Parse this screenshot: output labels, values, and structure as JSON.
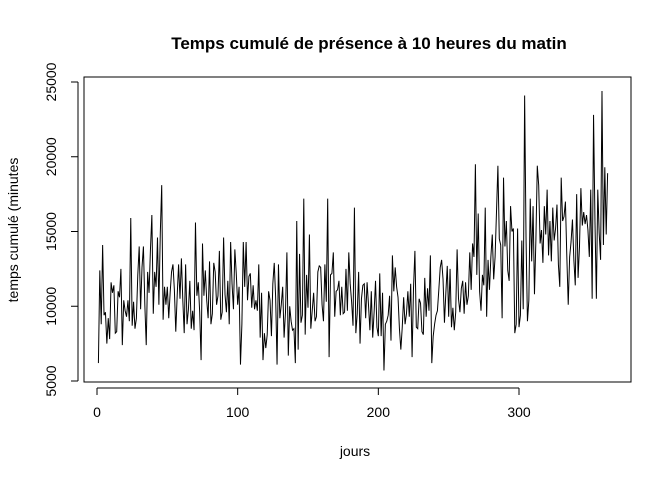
{
  "chart_data": {
    "type": "line",
    "title": "Temps cumulé de présence à 10 heures du matin",
    "xlabel": "jours",
    "ylabel": "temps cumulé (minutes",
    "xlim": [
      1,
      365
    ],
    "ylim": [
      5000,
      25000
    ],
    "x_ticks": [
      0,
      100,
      200,
      300
    ],
    "y_ticks": [
      5000,
      10000,
      15000,
      20000,
      25000
    ],
    "grid": false,
    "series": [
      {
        "x_start": 1,
        "x_step": 1,
        "values": [
          6200,
          12400,
          8800,
          14100,
          9400,
          9600,
          7500,
          9200,
          7800,
          11600,
          10900,
          11400,
          8200,
          8300,
          11000,
          10600,
          12500,
          7400,
          10400,
          9700,
          9300,
          10400,
          9000,
          15900,
          8700,
          10300,
          8500,
          9200,
          12100,
          14000,
          9800,
          12600,
          14000,
          10100,
          7400,
          12300,
          10900,
          13800,
          16100,
          9500,
          12300,
          11300,
          14600,
          10100,
          14900,
          18100,
          9100,
          11300,
          10100,
          11300,
          9200,
          10900,
          12300,
          12800,
          11100,
          8300,
          10700,
          12800,
          10500,
          13200,
          10400,
          8200,
          12800,
          8800,
          9800,
          11700,
          8500,
          9700,
          8400,
          15600,
          10700,
          11600,
          9600,
          6400,
          14200,
          10700,
          12400,
          10400,
          9200,
          13000,
          8800,
          9500,
          12900,
          12300,
          10100,
          10700,
          13700,
          9100,
          9600,
          14600,
          10800,
          9600,
          11700,
          8800,
          14300,
          11500,
          9800,
          13800,
          12200,
          10100,
          11300,
          6100,
          8800,
          14300,
          11300,
          14300,
          10400,
          12000,
          12200,
          9900,
          11400,
          9800,
          10400,
          9700,
          12800,
          7900,
          10900,
          6400,
          8200,
          7200,
          8100,
          11000,
          10400,
          8000,
          11500,
          12900,
          10600,
          6100,
          12800,
          9200,
          10100,
          11300,
          7900,
          9600,
          13600,
          6700,
          10000,
          9000,
          8400,
          8500,
          6200,
          15700,
          7100,
          13500,
          8900,
          9400,
          17200,
          8100,
          12100,
          9900,
          14800,
          8500,
          9700,
          10900,
          9000,
          9300,
          12300,
          12700,
          12600,
          10100,
          9000,
          12800,
          10300,
          17200,
          6600,
          12100,
          12200,
          13600,
          9300,
          11000,
          11100,
          11700,
          9400,
          11300,
          9500,
          9600,
          12500,
          9700,
          13600,
          11500,
          10300,
          8700,
          16600,
          8200,
          9500,
          12300,
          7500,
          10500,
          11400,
          11500,
          9200,
          11600,
          10100,
          8400,
          11000,
          7900,
          9600,
          11700,
          8600,
          8000,
          12200,
          8000,
          10900,
          5700,
          8800,
          9000,
          9400,
          10700,
          7700,
          13400,
          11000,
          12600,
          11300,
          10600,
          8500,
          7100,
          8600,
          10600,
          8800,
          9500,
          11000,
          9300,
          11500,
          6600,
          11200,
          13700,
          8600,
          8500,
          10500,
          10200,
          8300,
          8100,
          11900,
          9300,
          11200,
          9700,
          13400,
          6200,
          8000,
          8800,
          9400,
          9700,
          11100,
          12600,
          13100,
          11800,
          8900,
          10900,
          12700,
          9300,
          12500,
          8600,
          9900,
          8400,
          9600,
          13800,
          10500,
          9600,
          11200,
          11700,
          9500,
          11600,
          10100,
          10700,
          13600,
          11100,
          14200,
          13300,
          19500,
          12100,
          16200,
          11000,
          9700,
          12100,
          11400,
          16600,
          9300,
          13100,
          11100,
          13300,
          14800,
          11800,
          13300,
          16300,
          19400,
          14500,
          14100,
          9200,
          18600,
          14000,
          15700,
          12400,
          11700,
          16700,
          15000,
          15200,
          8200,
          8800,
          15200,
          8600,
          9400,
          14400,
          9800,
          24100,
          14600,
          9000,
          10400,
          17200,
          13000,
          16700,
          10800,
          14400,
          19400,
          18100,
          14200,
          15100,
          12900,
          16700,
          14800,
          17800,
          13400,
          15700,
          13000,
          16600,
          14400,
          15200,
          16800,
          12800,
          11300,
          18600,
          15700,
          16000,
          17000,
          13300,
          10100,
          13300,
          14300,
          15800,
          13100,
          11400,
          17500,
          11900,
          14000,
          17900,
          15400,
          16300,
          15500,
          16100,
          15100,
          13300,
          17800,
          10500,
          22800,
          15700,
          10500,
          17800,
          14900,
          13100,
          24400,
          14100,
          19300,
          14800,
          18900
        ]
      }
    ]
  }
}
